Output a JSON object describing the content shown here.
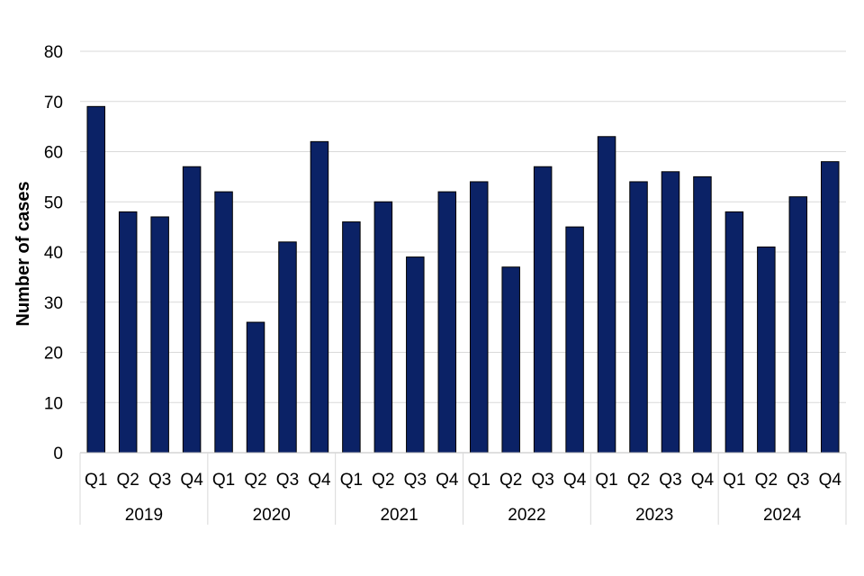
{
  "chart_data": {
    "type": "bar",
    "title": "",
    "xlabel": "",
    "ylabel": "Number of cases",
    "ylim": [
      0,
      80
    ],
    "yticks": [
      0,
      10,
      20,
      30,
      40,
      50,
      60,
      70,
      80
    ],
    "grid": true,
    "legend": "none",
    "bar_color": "#0b2266",
    "grid_color": "#d9d9d9",
    "groups": [
      {
        "label": "2019",
        "quarters": [
          "Q1",
          "Q2",
          "Q3",
          "Q4"
        ]
      },
      {
        "label": "2020",
        "quarters": [
          "Q1",
          "Q2",
          "Q3",
          "Q4"
        ]
      },
      {
        "label": "2021",
        "quarters": [
          "Q1",
          "Q2",
          "Q3",
          "Q4"
        ]
      },
      {
        "label": "2022",
        "quarters": [
          "Q1",
          "Q2",
          "Q3",
          "Q4"
        ]
      },
      {
        "label": "2023",
        "quarters": [
          "Q1",
          "Q2",
          "Q3",
          "Q4"
        ]
      },
      {
        "label": "2024",
        "quarters": [
          "Q1",
          "Q2",
          "Q3",
          "Q4"
        ]
      }
    ],
    "categories": [
      "2019 Q1",
      "2019 Q2",
      "2019 Q3",
      "2019 Q4",
      "2020 Q1",
      "2020 Q2",
      "2020 Q3",
      "2020 Q4",
      "2021 Q1",
      "2021 Q2",
      "2021 Q3",
      "2021 Q4",
      "2022 Q1",
      "2022 Q2",
      "2022 Q3",
      "2022 Q4",
      "2023 Q1",
      "2023 Q2",
      "2023 Q3",
      "2023 Q4",
      "2024 Q1",
      "2024 Q2",
      "2024 Q3",
      "2024 Q4"
    ],
    "values": [
      69,
      48,
      47,
      57,
      52,
      26,
      42,
      62,
      46,
      50,
      39,
      52,
      54,
      37,
      57,
      45,
      63,
      54,
      56,
      55,
      48,
      41,
      51,
      58
    ]
  }
}
